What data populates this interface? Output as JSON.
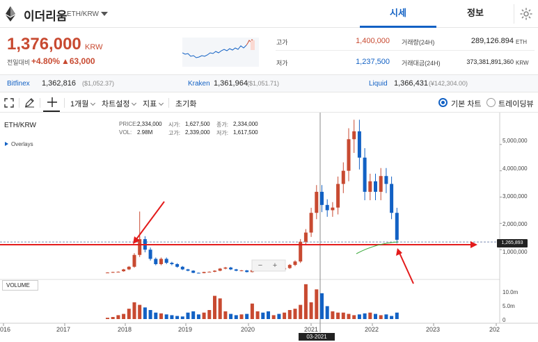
{
  "header": {
    "coin_name": "이더리움",
    "pair": "ETH/KRW",
    "tabs": [
      {
        "label": "시세"
      },
      {
        "label": "정보"
      }
    ]
  },
  "price_panel": {
    "price": "1,376,000",
    "unit": "KRW",
    "change_label": "전일대비",
    "change_rate": "+4.80%",
    "change_amount": "▲63,000",
    "high_label": "고가",
    "high": "1,400,000",
    "low_label": "저가",
    "low": "1,237,500",
    "volume_label": "거래량(24H)",
    "volume": "289,126.894",
    "volume_unit": "ETH",
    "amount_label": "거래대금(24H)",
    "amount": "373,381,891,360",
    "amount_unit": "KRW"
  },
  "exchanges": [
    {
      "name": "Bitfinex",
      "price": "1,362,816",
      "usd": "($1,052.37)"
    },
    {
      "name": "Kraken",
      "price": "1,361,964",
      "usd": "($1,051.71)"
    },
    {
      "name": "Liquid",
      "price": "1,366,431",
      "usd": "(¥142,304.00)"
    }
  ],
  "toolbar": {
    "period": "1개월",
    "chart_settings": "차트설정",
    "indicators": "지표",
    "reset": "초기화",
    "basic_chart": "기본 차트",
    "tradingview": "트레이딩뷰"
  },
  "chart_info": {
    "pair": "ETH/KRW",
    "overlays": "Overlays",
    "price_label": "PRICE:",
    "price": "2,334,000",
    "open_label": "시가:",
    "open": "1,627,500",
    "close_label": "종가:",
    "close": "2,334,000",
    "vol_label": "VOL:",
    "vol": "2.98M",
    "high_label": "고가:",
    "high": "2,339,000",
    "low_label": "저가:",
    "low": "1,617,500",
    "volume_title": "VOLUME",
    "current_price_tag": "1,265,893",
    "crosshair_date": "03-2021",
    "y_ticks": [
      "5,000,000",
      "4,000,000",
      "3,000,000",
      "2,000,000",
      "1,000,000"
    ],
    "vol_ticks": [
      "10.0m",
      "5.0m",
      "0"
    ],
    "x_ticks": [
      "016",
      "2017",
      "2018",
      "2019",
      "2020",
      "2021",
      "2022",
      "2023",
      "202"
    ],
    "zoom_out": "−",
    "zoom_in": "+"
  },
  "colors": {
    "up": "#c84a31",
    "down": "#1261c4",
    "annotation": "#e31b1b",
    "accent": "#1261c4"
  },
  "chart_data": {
    "type": "candlestick",
    "interval": "monthly",
    "ylim": [
      0,
      6000000
    ],
    "candles": [
      {
        "o": 120000,
        "c": 130000
      },
      {
        "o": 130000,
        "c": 150000
      },
      {
        "o": 150000,
        "c": 160000
      },
      {
        "o": 180000,
        "c": 250000
      },
      {
        "o": 250000,
        "c": 350000
      },
      {
        "o": 350000,
        "c": 800000
      },
      {
        "o": 800000,
        "c": 1400000
      },
      {
        "o": 1400000,
        "c": 1000000
      },
      {
        "o": 1000000,
        "c": 650000
      },
      {
        "o": 650000,
        "c": 450000
      },
      {
        "o": 450000,
        "c": 650000
      },
      {
        "o": 650000,
        "c": 500000
      },
      {
        "o": 500000,
        "c": 450000
      },
      {
        "o": 450000,
        "c": 350000
      },
      {
        "o": 350000,
        "c": 250000
      },
      {
        "o": 250000,
        "c": 200000
      },
      {
        "o": 200000,
        "c": 120000
      },
      {
        "o": 120000,
        "c": 110000
      },
      {
        "o": 110000,
        "c": 150000
      },
      {
        "o": 150000,
        "c": 160000
      },
      {
        "o": 160000,
        "c": 200000
      },
      {
        "o": 200000,
        "c": 280000
      },
      {
        "o": 280000,
        "c": 320000
      },
      {
        "o": 320000,
        "c": 250000
      },
      {
        "o": 250000,
        "c": 200000
      },
      {
        "o": 200000,
        "c": 210000
      },
      {
        "o": 210000,
        "c": 150000
      },
      {
        "o": 150000,
        "c": 220000
      },
      {
        "o": 220000,
        "c": 260000
      },
      {
        "o": 260000,
        "c": 250000
      },
      {
        "o": 250000,
        "c": 230000
      },
      {
        "o": 230000,
        "c": 280000
      },
      {
        "o": 280000,
        "c": 250000
      },
      {
        "o": 250000,
        "c": 300000
      },
      {
        "o": 300000,
        "c": 420000
      },
      {
        "o": 420000,
        "c": 550000
      },
      {
        "o": 550000,
        "c": 1300000
      },
      {
        "o": 1300000,
        "c": 1650000
      },
      {
        "o": 1650000,
        "c": 2400000
      },
      {
        "o": 2400000,
        "c": 3200000
      },
      {
        "o": 3200000,
        "c": 2700000
      },
      {
        "o": 2700000,
        "c": 2500000
      },
      {
        "o": 2500000,
        "c": 2600000
      },
      {
        "o": 2600000,
        "c": 3500000
      },
      {
        "o": 3500000,
        "c": 4000000
      },
      {
        "o": 4000000,
        "c": 5200000
      },
      {
        "o": 5200000,
        "c": 5500000
      },
      {
        "o": 5500000,
        "c": 4500000
      },
      {
        "o": 4500000,
        "c": 3200000
      },
      {
        "o": 3200000,
        "c": 3600000
      },
      {
        "o": 3600000,
        "c": 3200000
      },
      {
        "o": 3200000,
        "c": 3800000
      },
      {
        "o": 3800000,
        "c": 3500000
      },
      {
        "o": 3500000,
        "c": 2400000
      },
      {
        "o": 2400000,
        "c": 1376000
      }
    ],
    "volume_ylim": [
      0,
      14000000
    ],
    "volumes": [
      500000,
      800000,
      1500000,
      2000000,
      4000000,
      6500000,
      5500000,
      4500000,
      3500000,
      2500000,
      2200000,
      1800000,
      1500000,
      1200000,
      1000000,
      2500000,
      3000000,
      1800000,
      2500000,
      3500000,
      9000000,
      8000000,
      3000000,
      2000000,
      1500000,
      1800000,
      2000000,
      6000000,
      3000000,
      2500000,
      3000000,
      1500000,
      2000000,
      2500000,
      3500000,
      4000000,
      5500000,
      13500000,
      6500000,
      11500000,
      10000000,
      5000000,
      3000000,
      2500000,
      2500000,
      2000000,
      1500000,
      1800000,
      2200000,
      2500000,
      2000000,
      1500000,
      1800000,
      1200000,
      2500000
    ]
  }
}
